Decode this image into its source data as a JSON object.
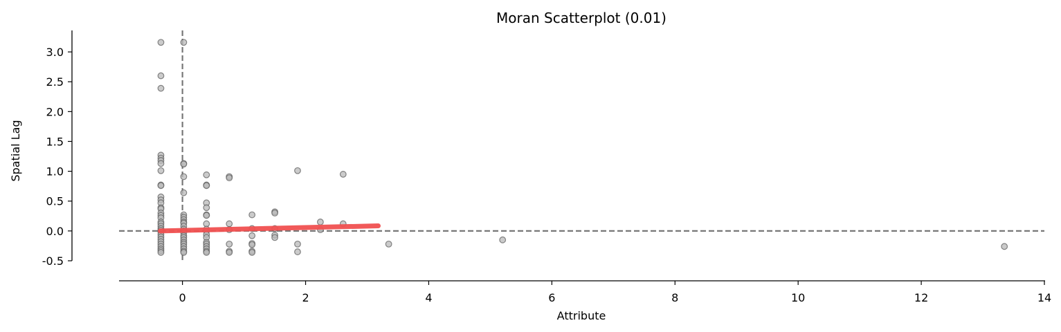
{
  "chart_data": {
    "type": "scatter",
    "title": "Moran Scatterplot (0.01)",
    "xlabel": "Attribute",
    "ylabel": "Spatial Lag",
    "xlim": [
      -1.03,
      14.0
    ],
    "ylim": [
      -0.72,
      3.36
    ],
    "x_ticks": [
      0,
      2,
      4,
      6,
      8,
      10,
      12,
      14
    ],
    "y_ticks": [
      -0.5,
      0.0,
      0.5,
      1.0,
      1.5,
      2.0,
      2.5,
      3.0
    ],
    "grid": false,
    "point_color": "#bababa",
    "point_edge_color": "#555555",
    "reference_line_color": "#777777",
    "fit_line_color": "#f05050",
    "reference_lines": {
      "x": 0.0,
      "y": 0.0
    },
    "fit_line": {
      "x": [
        -0.36,
        3.18
      ],
      "y": [
        0.0,
        0.085
      ]
    },
    "points": [
      {
        "x": -0.35,
        "y": 3.16
      },
      {
        "x": -0.35,
        "y": 2.6
      },
      {
        "x": -0.35,
        "y": 2.39
      },
      {
        "x": -0.35,
        "y": 1.27
      },
      {
        "x": -0.35,
        "y": 1.22
      },
      {
        "x": -0.35,
        "y": 1.18
      },
      {
        "x": -0.35,
        "y": 1.13
      },
      {
        "x": -0.35,
        "y": 1.01
      },
      {
        "x": -0.35,
        "y": 0.77
      },
      {
        "x": -0.35,
        "y": 0.76
      },
      {
        "x": -0.35,
        "y": 0.57
      },
      {
        "x": -0.35,
        "y": 0.52
      },
      {
        "x": -0.35,
        "y": 0.47
      },
      {
        "x": -0.35,
        "y": 0.39
      },
      {
        "x": -0.35,
        "y": 0.37
      },
      {
        "x": -0.35,
        "y": 0.3
      },
      {
        "x": -0.35,
        "y": 0.26
      },
      {
        "x": -0.35,
        "y": 0.22
      },
      {
        "x": -0.35,
        "y": 0.15
      },
      {
        "x": -0.35,
        "y": 0.12
      },
      {
        "x": -0.35,
        "y": 0.08
      },
      {
        "x": -0.35,
        "y": 0.04
      },
      {
        "x": -0.35,
        "y": 0.01
      },
      {
        "x": -0.35,
        "y": -0.02
      },
      {
        "x": -0.35,
        "y": -0.06
      },
      {
        "x": -0.35,
        "y": -0.1
      },
      {
        "x": -0.35,
        "y": -0.14
      },
      {
        "x": -0.35,
        "y": -0.18
      },
      {
        "x": -0.35,
        "y": -0.22
      },
      {
        "x": -0.35,
        "y": -0.26
      },
      {
        "x": -0.35,
        "y": -0.3
      },
      {
        "x": -0.35,
        "y": -0.33
      },
      {
        "x": -0.35,
        "y": -0.36
      },
      {
        "x": 0.02,
        "y": 3.16
      },
      {
        "x": 0.02,
        "y": 1.13
      },
      {
        "x": 0.02,
        "y": 1.12
      },
      {
        "x": 0.02,
        "y": 0.91
      },
      {
        "x": 0.02,
        "y": 0.64
      },
      {
        "x": 0.02,
        "y": 0.27
      },
      {
        "x": 0.02,
        "y": 0.23
      },
      {
        "x": 0.02,
        "y": 0.19
      },
      {
        "x": 0.02,
        "y": 0.15
      },
      {
        "x": 0.02,
        "y": 0.13
      },
      {
        "x": 0.02,
        "y": 0.08
      },
      {
        "x": 0.02,
        "y": 0.03
      },
      {
        "x": 0.02,
        "y": 0.0
      },
      {
        "x": 0.02,
        "y": -0.03
      },
      {
        "x": 0.02,
        "y": -0.08
      },
      {
        "x": 0.02,
        "y": -0.11
      },
      {
        "x": 0.02,
        "y": -0.15
      },
      {
        "x": 0.02,
        "y": -0.19
      },
      {
        "x": 0.02,
        "y": -0.22
      },
      {
        "x": 0.02,
        "y": -0.26
      },
      {
        "x": 0.02,
        "y": -0.3
      },
      {
        "x": 0.02,
        "y": -0.34
      },
      {
        "x": 0.02,
        "y": -0.36
      },
      {
        "x": 0.39,
        "y": 0.94
      },
      {
        "x": 0.39,
        "y": 0.77
      },
      {
        "x": 0.39,
        "y": 0.76
      },
      {
        "x": 0.39,
        "y": 0.47
      },
      {
        "x": 0.39,
        "y": 0.39
      },
      {
        "x": 0.39,
        "y": 0.27
      },
      {
        "x": 0.39,
        "y": 0.26
      },
      {
        "x": 0.39,
        "y": 0.12
      },
      {
        "x": 0.39,
        "y": 0.03
      },
      {
        "x": 0.39,
        "y": 0.0
      },
      {
        "x": 0.39,
        "y": -0.06
      },
      {
        "x": 0.39,
        "y": -0.11
      },
      {
        "x": 0.39,
        "y": -0.19
      },
      {
        "x": 0.39,
        "y": -0.22
      },
      {
        "x": 0.39,
        "y": -0.26
      },
      {
        "x": 0.39,
        "y": -0.3
      },
      {
        "x": 0.39,
        "y": -0.34
      },
      {
        "x": 0.39,
        "y": -0.36
      },
      {
        "x": 0.76,
        "y": 0.91
      },
      {
        "x": 0.76,
        "y": 0.89
      },
      {
        "x": 0.76,
        "y": 0.12
      },
      {
        "x": 0.76,
        "y": 0.02
      },
      {
        "x": 0.76,
        "y": -0.22
      },
      {
        "x": 0.76,
        "y": -0.34
      },
      {
        "x": 0.76,
        "y": -0.36
      },
      {
        "x": 1.13,
        "y": 0.27
      },
      {
        "x": 1.13,
        "y": 0.04
      },
      {
        "x": 1.13,
        "y": -0.08
      },
      {
        "x": 1.13,
        "y": -0.21
      },
      {
        "x": 1.13,
        "y": -0.23
      },
      {
        "x": 1.13,
        "y": -0.34
      },
      {
        "x": 1.13,
        "y": -0.36
      },
      {
        "x": 1.5,
        "y": 0.32
      },
      {
        "x": 1.5,
        "y": 0.3
      },
      {
        "x": 1.5,
        "y": 0.04
      },
      {
        "x": 1.5,
        "y": -0.07
      },
      {
        "x": 1.5,
        "y": -0.11
      },
      {
        "x": 1.87,
        "y": 1.01
      },
      {
        "x": 1.87,
        "y": -0.22
      },
      {
        "x": 1.87,
        "y": -0.35
      },
      {
        "x": 2.24,
        "y": 0.15
      },
      {
        "x": 2.24,
        "y": 0.02
      },
      {
        "x": 2.61,
        "y": 0.95
      },
      {
        "x": 2.61,
        "y": 0.12
      },
      {
        "x": 3.35,
        "y": -0.22
      },
      {
        "x": 5.2,
        "y": -0.15
      },
      {
        "x": 13.35,
        "y": -0.26
      }
    ]
  }
}
